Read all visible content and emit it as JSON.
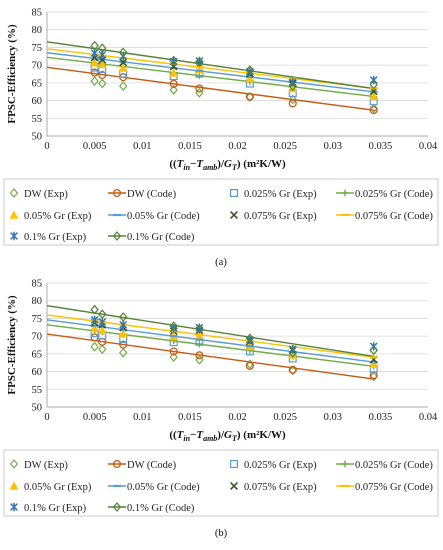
{
  "chart_data": [
    {
      "type": "scatter",
      "panel_label": "(a)",
      "ylabel": "FPSC-Efficiency (%)",
      "xlabel": "((Tin−Tamb)/GT) (m²K/W)",
      "xlim": [
        0,
        0.04
      ],
      "ylim": [
        50,
        85
      ],
      "xticks": [
        "0",
        "0.005",
        "0.01",
        "0.015",
        "0.02",
        "0.025",
        "0.03",
        "0.035",
        "0.04"
      ],
      "yticks": [
        "50",
        "55",
        "60",
        "65",
        "70",
        "75",
        "80",
        "85"
      ],
      "grid": "horizontal",
      "legend_position": "bottom",
      "series": [
        {
          "name": "DW (Exp)",
          "marker": "diamond",
          "color": "#70AD47",
          "x": [
            0.005,
            0.0058,
            0.008,
            0.0133,
            0.016,
            0.0213,
            0.0258,
            0.0343
          ],
          "y": [
            65.5,
            64.8,
            64.1,
            63.0,
            62.2,
            61.0,
            60.3,
            57.8
          ]
        },
        {
          "name": "DW (Code)",
          "marker": "circle",
          "color": "#C55A11",
          "fit": [
            0.0,
            69.4,
            0.0345,
            57.2
          ],
          "x": [
            0.005,
            0.0058,
            0.008,
            0.0133,
            0.016,
            0.0213,
            0.0258,
            0.0343
          ],
          "y": [
            67.9,
            67.2,
            66.6,
            64.7,
            63.4,
            61.1,
            59.2,
            57.3
          ]
        },
        {
          "name": "0.025% Gr (Exp)",
          "marker": "square",
          "color": "#5B9BD5",
          "x": [
            0.005,
            0.0058,
            0.008,
            0.0133,
            0.016,
            0.0213,
            0.0258,
            0.0343
          ],
          "y": [
            69.3,
            68.9,
            67.6,
            66.9,
            67.6,
            64.8,
            62.1,
            59.8
          ]
        },
        {
          "name": "0.025% Gr (Code)",
          "marker": "plus",
          "color": "#70AD47",
          "fit": [
            0.0,
            72.2,
            0.0345,
            61.1
          ],
          "x": [
            0.005,
            0.0058,
            0.008,
            0.0133,
            0.016,
            0.0213,
            0.0258,
            0.0343
          ],
          "y": [
            70.6,
            70.3,
            69.6,
            67.9,
            67.0,
            65.3,
            63.9,
            61.1
          ]
        },
        {
          "name": "0.05% Gr (Exp)",
          "marker": "triangle",
          "color": "#FFC000",
          "x": [
            0.005,
            0.0058,
            0.008,
            0.0133,
            0.016,
            0.0213,
            0.0258,
            0.0343
          ],
          "y": [
            70.7,
            70.2,
            69.2,
            67.8,
            68.8,
            66.2,
            63.4,
            61.2
          ]
        },
        {
          "name": "0.05% Gr (Code)",
          "marker": "dash",
          "color": "#5B9BD5",
          "fit": [
            0.0,
            73.5,
            0.0345,
            62.4
          ],
          "x": [
            0.005,
            0.0058,
            0.008,
            0.0133,
            0.016,
            0.0213,
            0.0258,
            0.0343
          ],
          "y": [
            71.9,
            71.6,
            70.9,
            69.2,
            68.4,
            66.7,
            65.2,
            62.5
          ]
        },
        {
          "name": "0.075% Gr (Exp)",
          "marker": "x",
          "color": "#375623",
          "x": [
            0.005,
            0.0058,
            0.008,
            0.0133,
            0.016,
            0.0213,
            0.0258,
            0.0343
          ],
          "y": [
            72.1,
            71.5,
            70.8,
            69.6,
            70.3,
            67.6,
            64.8,
            62.6
          ]
        },
        {
          "name": "0.075% Gr (Code)",
          "marker": "dash",
          "color": "#FFC000",
          "fit": [
            0.0,
            74.6,
            0.0345,
            63.4
          ],
          "x": [
            0.005,
            0.0058,
            0.008,
            0.0133,
            0.016,
            0.0213,
            0.0258,
            0.0343
          ],
          "y": [
            73.0,
            72.7,
            72.0,
            70.4,
            69.5,
            67.8,
            66.2,
            63.5
          ]
        },
        {
          "name": "0.1% Gr (Exp)",
          "marker": "star",
          "color": "#2E75B6",
          "x": [
            0.005,
            0.0058,
            0.008,
            0.0133,
            0.016,
            0.0213,
            0.0258,
            0.0343
          ],
          "y": [
            73.4,
            72.9,
            72.5,
            71.0,
            71.2,
            68.2,
            65.2,
            65.8
          ]
        },
        {
          "name": "0.1% Gr (Code)",
          "marker": "diamond",
          "color": "#548235",
          "fit": [
            0.0,
            76.6,
            0.0345,
            63.3
          ],
          "x": [
            0.005,
            0.0058,
            0.008,
            0.0133,
            0.016,
            0.0213,
            0.0258,
            0.0343
          ],
          "y": [
            75.5,
            74.8,
            73.6,
            71.3,
            70.9,
            68.6,
            64.0,
            64.5
          ]
        }
      ]
    },
    {
      "type": "scatter",
      "panel_label": "(b)",
      "ylabel": "FPSC-Efficiency (%)",
      "xlabel": "((Tin−Tamb)/GT) (m²K/W)",
      "xlim": [
        0,
        0.04
      ],
      "ylim": [
        50,
        85
      ],
      "xticks": [
        "0",
        "0.005",
        "0.01",
        "0.015",
        "0.02",
        "0.025",
        "0.03",
        "0.035",
        "0.04"
      ],
      "yticks": [
        "50",
        "55",
        "60",
        "65",
        "70",
        "75",
        "80",
        "85"
      ],
      "grid": "horizontal",
      "legend_position": "bottom",
      "series": [
        {
          "name": "DW (Exp)",
          "marker": "diamond",
          "color": "#70AD47",
          "x": [
            0.005,
            0.0058,
            0.008,
            0.0133,
            0.016,
            0.0213,
            0.0258,
            0.0343
          ],
          "y": [
            67.0,
            66.3,
            65.3,
            64.1,
            63.3,
            62.1,
            60.3,
            58.6
          ]
        },
        {
          "name": "DW (Code)",
          "marker": "circle",
          "color": "#C55A11",
          "fit": [
            0.0,
            70.6,
            0.0345,
            57.8
          ],
          "x": [
            0.005,
            0.0058,
            0.008,
            0.0133,
            0.016,
            0.0213,
            0.0258,
            0.0343
          ],
          "y": [
            69.6,
            68.4,
            67.6,
            65.7,
            64.6,
            61.6,
            60.5,
            59.0
          ]
        },
        {
          "name": "0.025% Gr (Exp)",
          "marker": "square",
          "color": "#5B9BD5",
          "x": [
            0.005,
            0.0058,
            0.008,
            0.0133,
            0.016,
            0.0213,
            0.0258,
            0.0343
          ],
          "y": [
            70.8,
            70.2,
            69.2,
            68.3,
            68.4,
            65.7,
            63.7,
            60.8
          ]
        },
        {
          "name": "0.025% Gr (Code)",
          "marker": "plus",
          "color": "#70AD47",
          "fit": [
            0.0,
            73.2,
            0.0345,
            61.4
          ],
          "x": [
            0.005,
            0.0058,
            0.008,
            0.0133,
            0.016,
            0.0213,
            0.0258,
            0.0343
          ],
          "y": [
            71.5,
            71.2,
            70.5,
            68.7,
            67.8,
            66.0,
            64.4,
            61.5
          ]
        },
        {
          "name": "0.05% Gr (Exp)",
          "marker": "triangle",
          "color": "#FFC000",
          "x": [
            0.005,
            0.0058,
            0.008,
            0.0133,
            0.016,
            0.0213,
            0.0258,
            0.0343
          ],
          "y": [
            72.3,
            71.6,
            70.8,
            69.8,
            70.0,
            67.1,
            64.7,
            62.1
          ]
        },
        {
          "name": "0.05% Gr (Code)",
          "marker": "dash",
          "color": "#5B9BD5",
          "fit": [
            0.0,
            74.6,
            0.0345,
            62.6
          ],
          "x": [
            0.005,
            0.0058,
            0.008,
            0.0133,
            0.016,
            0.0213,
            0.0258,
            0.0343
          ],
          "y": [
            72.9,
            72.6,
            71.8,
            70.0,
            69.0,
            67.2,
            65.6,
            62.6
          ]
        },
        {
          "name": "0.075% Gr (Exp)",
          "marker": "x",
          "color": "#375623",
          "x": [
            0.005,
            0.0058,
            0.008,
            0.0133,
            0.016,
            0.0213,
            0.0258,
            0.0343
          ],
          "y": [
            73.8,
            73.2,
            72.4,
            71.4,
            71.6,
            68.5,
            66.0,
            63.4
          ]
        },
        {
          "name": "0.075% Gr (Code)",
          "marker": "dash",
          "color": "#FFC000",
          "fit": [
            0.0,
            76.0,
            0.0345,
            64.0
          ],
          "x": [
            0.005,
            0.0058,
            0.008,
            0.0133,
            0.016,
            0.0213,
            0.0258,
            0.0343
          ],
          "y": [
            74.3,
            74.0,
            73.2,
            71.4,
            70.4,
            68.6,
            67.0,
            64.0
          ]
        },
        {
          "name": "0.1% Gr (Exp)",
          "marker": "star",
          "color": "#2E75B6",
          "x": [
            0.005,
            0.0058,
            0.008,
            0.0133,
            0.016,
            0.0213,
            0.0258,
            0.0343
          ],
          "y": [
            74.6,
            74.0,
            73.2,
            72.2,
            72.4,
            68.9,
            66.3,
            67.1
          ]
        },
        {
          "name": "0.1% Gr (Code)",
          "marker": "diamond",
          "color": "#548235",
          "fit": [
            0.0,
            78.6,
            0.0345,
            64.2
          ],
          "x": [
            0.005,
            0.0058,
            0.008,
            0.0133,
            0.016,
            0.0213,
            0.0258,
            0.0343
          ],
          "y": [
            77.5,
            76.2,
            75.4,
            72.8,
            72.1,
            69.4,
            65.3,
            66.0
          ]
        }
      ]
    }
  ]
}
